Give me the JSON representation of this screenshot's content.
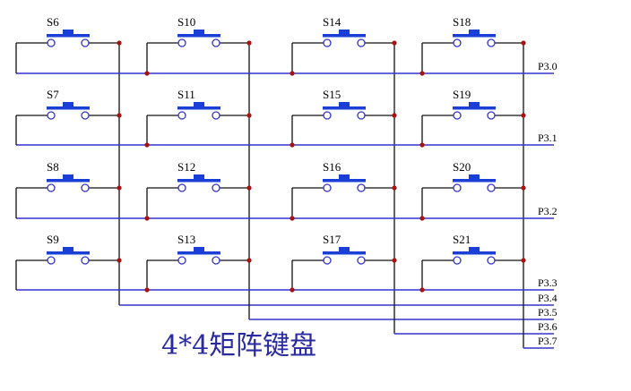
{
  "title": "4*4矩阵键盘",
  "switches": [
    [
      "S6",
      "S10",
      "S14",
      "S18"
    ],
    [
      "S7",
      "S11",
      "S15",
      "S19"
    ],
    [
      "S8",
      "S12",
      "S16",
      "S20"
    ],
    [
      "S9",
      "S13",
      "S17",
      "S21"
    ]
  ],
  "ports": [
    "P3.0",
    "P3.1",
    "P3.2",
    "P3.3",
    "P3.4",
    "P3.5",
    "P3.6",
    "P3.7"
  ],
  "colors": {
    "wire": "#3333cc",
    "junction": "#aa1111",
    "switch": "#1a3fd6",
    "title": "#2a2aa0"
  }
}
